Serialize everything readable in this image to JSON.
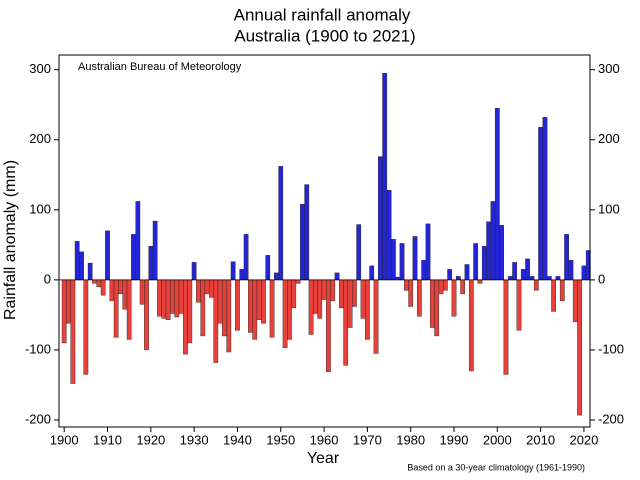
{
  "chart_data": {
    "type": "bar",
    "title": "Annual rainfall anomaly",
    "subtitle": "Australia (1900 to 2021)",
    "annotation": "Australian Bureau of Meteorology",
    "footnote": "Based on a 30-year climatology (1961-1990)",
    "xlabel": "Year",
    "ylabel": "Rainfall anomaly (mm)",
    "positive_color": "#2424d8",
    "negative_color": "#e8413c",
    "x": [
      1900,
      1901,
      1902,
      1903,
      1904,
      1905,
      1906,
      1907,
      1908,
      1909,
      1910,
      1911,
      1912,
      1913,
      1914,
      1915,
      1916,
      1917,
      1918,
      1919,
      1920,
      1921,
      1922,
      1923,
      1924,
      1925,
      1926,
      1927,
      1928,
      1929,
      1930,
      1931,
      1932,
      1933,
      1934,
      1935,
      1936,
      1937,
      1938,
      1939,
      1940,
      1941,
      1942,
      1943,
      1944,
      1945,
      1946,
      1947,
      1948,
      1949,
      1950,
      1951,
      1952,
      1953,
      1954,
      1955,
      1956,
      1957,
      1958,
      1959,
      1960,
      1961,
      1962,
      1963,
      1964,
      1965,
      1966,
      1967,
      1968,
      1969,
      1970,
      1971,
      1972,
      1973,
      1974,
      1975,
      1976,
      1977,
      1978,
      1979,
      1980,
      1981,
      1982,
      1983,
      1984,
      1985,
      1986,
      1987,
      1988,
      1989,
      1990,
      1991,
      1992,
      1993,
      1994,
      1995,
      1996,
      1997,
      1998,
      1999,
      2000,
      2001,
      2002,
      2003,
      2004,
      2005,
      2006,
      2007,
      2008,
      2009,
      2010,
      2011,
      2012,
      2013,
      2014,
      2015,
      2016,
      2017,
      2018,
      2019,
      2020,
      2021
    ],
    "values": [
      -90,
      -62,
      -148,
      55,
      40,
      -135,
      24,
      -5,
      -10,
      -22,
      70,
      -30,
      -82,
      -20,
      -42,
      -85,
      65,
      112,
      -35,
      -100,
      48,
      84,
      -52,
      -55,
      -57,
      -48,
      -53,
      -48,
      -106,
      -90,
      25,
      -32,
      -80,
      -20,
      -25,
      -118,
      -62,
      -80,
      -103,
      26,
      -72,
      15,
      65,
      -75,
      -85,
      -57,
      -62,
      35,
      -82,
      10,
      162,
      -97,
      -85,
      -40,
      -5,
      108,
      136,
      -78,
      -48,
      -55,
      -28,
      -131,
      -30,
      10,
      -40,
      -122,
      -68,
      -38,
      79,
      -55,
      -85,
      20,
      -105,
      176,
      295,
      128,
      58,
      4,
      52,
      -15,
      -38,
      62,
      -52,
      28,
      80,
      -68,
      -80,
      -20,
      -15,
      15,
      -52,
      5,
      -20,
      22,
      -130,
      52,
      -5,
      48,
      83,
      112,
      245,
      78,
      -135,
      5,
      25,
      -72,
      15,
      30,
      5,
      -15,
      218,
      232,
      5,
      -45,
      5,
      -30,
      65,
      28,
      -60,
      -193,
      20,
      42
    ],
    "xlim": [
      1898.8,
      2021.4
    ],
    "xticks": [
      1900,
      1910,
      1920,
      1930,
      1940,
      1950,
      1960,
      1970,
      1980,
      1990,
      2000,
      2010,
      2020
    ],
    "ylim": [
      -210,
      321
    ],
    "yticks": [
      -200,
      -100,
      0,
      100,
      200,
      300
    ]
  }
}
